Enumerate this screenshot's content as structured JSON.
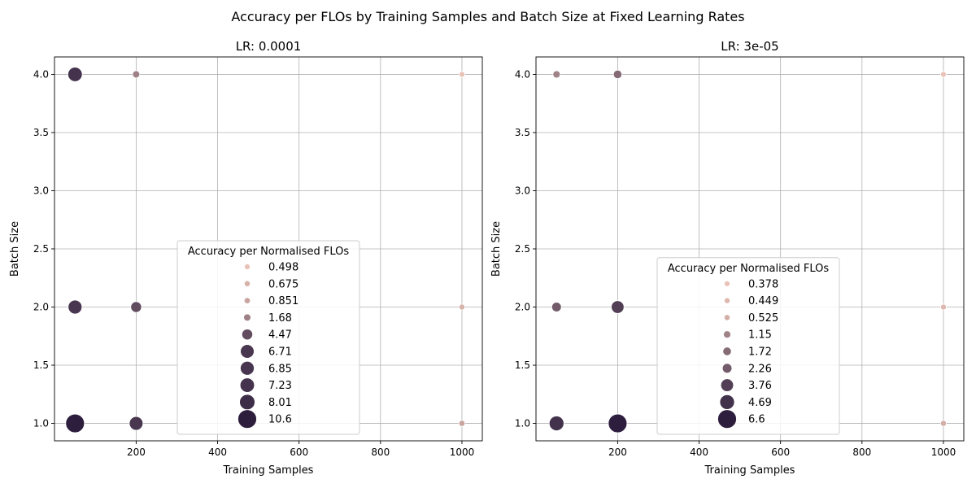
{
  "figure": {
    "suptitle": "Accuracy per FLOs by Training Samples and Batch Size at Fixed Learning Rates"
  },
  "chart_data": [
    {
      "type": "scatter",
      "title": "LR: 0.0001",
      "xlabel": "Training Samples",
      "ylabel": "Batch Size",
      "xlim": [
        -0.5,
        1050
      ],
      "ylim": [
        0.85,
        4.15
      ],
      "xticks": [
        200,
        400,
        600,
        800,
        1000
      ],
      "yticks": [
        1.0,
        1.5,
        2.0,
        2.5,
        3.0,
        3.5,
        4.0
      ],
      "xtick_labels": [
        "200",
        "400",
        "600",
        "800",
        "1000"
      ],
      "ytick_labels": [
        "1.0",
        "1.5",
        "2.0",
        "2.5",
        "3.0",
        "3.5",
        "4.0"
      ],
      "grid": true,
      "hue_range": [
        0.498,
        10.6
      ],
      "legend": {
        "title": "Accuracy per Normalised FLOs",
        "placement": "lower-center",
        "entries": [
          "0.498",
          "0.675",
          "0.851",
          "1.68",
          "4.47",
          "6.71",
          "6.85",
          "7.23",
          "8.01",
          "10.6"
        ],
        "values": [
          0.498,
          0.675,
          0.851,
          1.68,
          4.47,
          6.71,
          6.85,
          7.23,
          8.01,
          10.6
        ]
      },
      "points": [
        {
          "x": 50,
          "y": 4,
          "value": 7.23
        },
        {
          "x": 200,
          "y": 4,
          "value": 1.68
        },
        {
          "x": 1000,
          "y": 4,
          "value": 0.498
        },
        {
          "x": 50,
          "y": 2,
          "value": 6.85
        },
        {
          "x": 200,
          "y": 2,
          "value": 4.47
        },
        {
          "x": 1000,
          "y": 2,
          "value": 0.675
        },
        {
          "x": 50,
          "y": 1,
          "value": 10.6
        },
        {
          "x": 200,
          "y": 1,
          "value": 6.71
        },
        {
          "x": 1000,
          "y": 1,
          "value": 0.851
        }
      ]
    },
    {
      "type": "scatter",
      "title": "LR: 3e-05",
      "xlabel": "Training Samples",
      "ylabel": "Batch Size",
      "xlim": [
        -0.5,
        1050
      ],
      "ylim": [
        0.85,
        4.15
      ],
      "xticks": [
        200,
        400,
        600,
        800,
        1000
      ],
      "yticks": [
        1.0,
        1.5,
        2.0,
        2.5,
        3.0,
        3.5,
        4.0
      ],
      "xtick_labels": [
        "200",
        "400",
        "600",
        "800",
        "1000"
      ],
      "ytick_labels": [
        "1.0",
        "1.5",
        "2.0",
        "2.5",
        "3.0",
        "3.5",
        "4.0"
      ],
      "grid": true,
      "hue_range": [
        0.378,
        6.6
      ],
      "legend": {
        "title": "Accuracy per Normalised FLOs",
        "placement": "lower-center",
        "entries": [
          "0.378",
          "0.449",
          "0.525",
          "1.15",
          "1.72",
          "2.26",
          "3.76",
          "4.69",
          "6.6"
        ],
        "values": [
          0.378,
          0.449,
          0.525,
          1.15,
          1.72,
          2.26,
          3.76,
          4.69,
          6.6
        ]
      },
      "points": [
        {
          "x": 50,
          "y": 4,
          "value": 1.15
        },
        {
          "x": 200,
          "y": 4,
          "value": 1.72
        },
        {
          "x": 1000,
          "y": 4,
          "value": 0.378
        },
        {
          "x": 50,
          "y": 2,
          "value": 2.26
        },
        {
          "x": 200,
          "y": 2,
          "value": 3.76
        },
        {
          "x": 1000,
          "y": 2,
          "value": 0.449
        },
        {
          "x": 50,
          "y": 1,
          "value": 4.69
        },
        {
          "x": 200,
          "y": 1,
          "value": 6.6
        },
        {
          "x": 1000,
          "y": 1,
          "value": 0.525
        }
      ]
    }
  ]
}
